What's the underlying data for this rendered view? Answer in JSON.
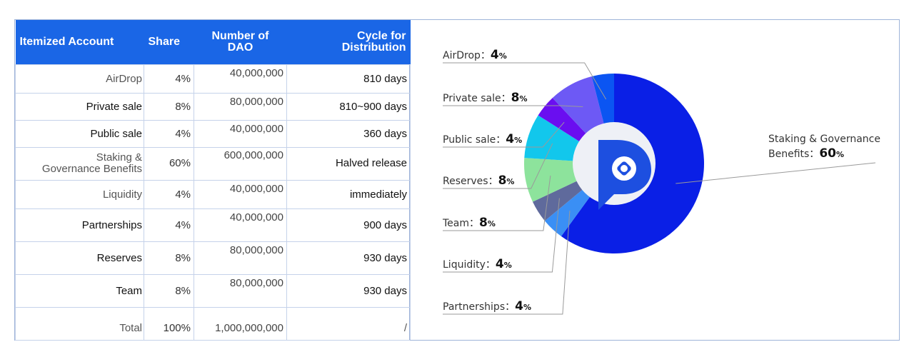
{
  "table": {
    "headers": {
      "account": "Itemized Account",
      "share": "Share",
      "number_line1": "Number of",
      "number_line2": "DAO",
      "cycle_line1": "Cycle for",
      "cycle_line2": "Distribution"
    },
    "rows": [
      {
        "account": "AirDrop",
        "share": "4%",
        "number": "40,000,000",
        "cycle": "810 days"
      },
      {
        "account": "Private sale",
        "share": "8%",
        "number": "80,000,000",
        "cycle": "810~900 days"
      },
      {
        "account": "Public sale",
        "share": "4%",
        "number": "40,000,000",
        "cycle": "360 days"
      },
      {
        "account_line1": "Staking &",
        "account_line2": "Governance Benefits",
        "share": "60%",
        "number": "600,000,000",
        "cycle": "Halved release"
      },
      {
        "account": "Liquidity",
        "share": "4%",
        "number": "40,000,000",
        "cycle": "immediately"
      },
      {
        "account": "Partnerships",
        "share": "4%",
        "number": "40,000,000",
        "cycle": "900 days"
      },
      {
        "account": "Reserves",
        "share": "8%",
        "number": "80,000,000",
        "cycle": "930 days"
      },
      {
        "account": "Team",
        "share": "8%",
        "number": "80,000,000",
        "cycle": "930 days"
      },
      {
        "account": "Total",
        "share": "100%",
        "number": "1,000,000,000",
        "cycle": "/"
      }
    ]
  },
  "chart_data": {
    "type": "pie",
    "style": "donut",
    "unit": "%",
    "center_icon": "dao-logo-icon",
    "slices": [
      {
        "name": "Staking & Governance Benefits",
        "label_line1": "Staking & Governance",
        "label_line2": "Benefits：",
        "value": 60,
        "color": "#0a1fe6"
      },
      {
        "name": "Partnerships",
        "label": "Partnerships：",
        "value": 4,
        "color": "#3a8ff5"
      },
      {
        "name": "Liquidity",
        "label": "Liquidity：",
        "value": 4,
        "color": "#5f6a9c"
      },
      {
        "name": "Team",
        "label": "Team：",
        "value": 8,
        "color": "#8de39c"
      },
      {
        "name": "Reserves",
        "label": "Reserves：",
        "value": 8,
        "color": "#12c7ec"
      },
      {
        "name": "Public sale",
        "label": "Public sale：",
        "value": 4,
        "color": "#6a0ef0"
      },
      {
        "name": "Private sale",
        "label": "Private sale：",
        "value": 8,
        "color": "#6d59f5"
      },
      {
        "name": "AirDrop",
        "label": "AirDrop：",
        "value": 4,
        "color": "#0b55f2"
      }
    ]
  }
}
